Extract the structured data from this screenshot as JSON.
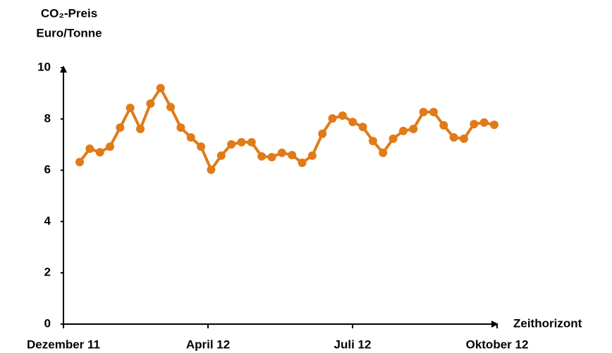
{
  "chart_data": {
    "type": "line",
    "ylabel": [
      "CO₂-Preis",
      "Euro/Tonne"
    ],
    "xlabel": "Zeithorizont",
    "x_labels": [
      "Dezember 11",
      "April 12",
      "Juli 12",
      "Oktober 12"
    ],
    "series": [
      {
        "name": "CO₂-Preis",
        "color": "#e07b18",
        "values": [
          6.32,
          6.84,
          6.7,
          6.92,
          7.66,
          8.43,
          7.61,
          8.6,
          9.2,
          8.46,
          7.66,
          7.28,
          6.92,
          6.02,
          6.57,
          7.01,
          7.09,
          7.09,
          6.54,
          6.51,
          6.68,
          6.59,
          6.29,
          6.57,
          7.42,
          8.02,
          8.13,
          7.88,
          7.69,
          7.14,
          6.68,
          7.23,
          7.53,
          7.61,
          8.27,
          8.27,
          7.75,
          7.28,
          7.23,
          7.8,
          7.86,
          7.77
        ]
      }
    ],
    "ylim": [
      0,
      10
    ],
    "yticks": [
      0,
      2,
      4,
      6,
      8,
      10
    ]
  }
}
